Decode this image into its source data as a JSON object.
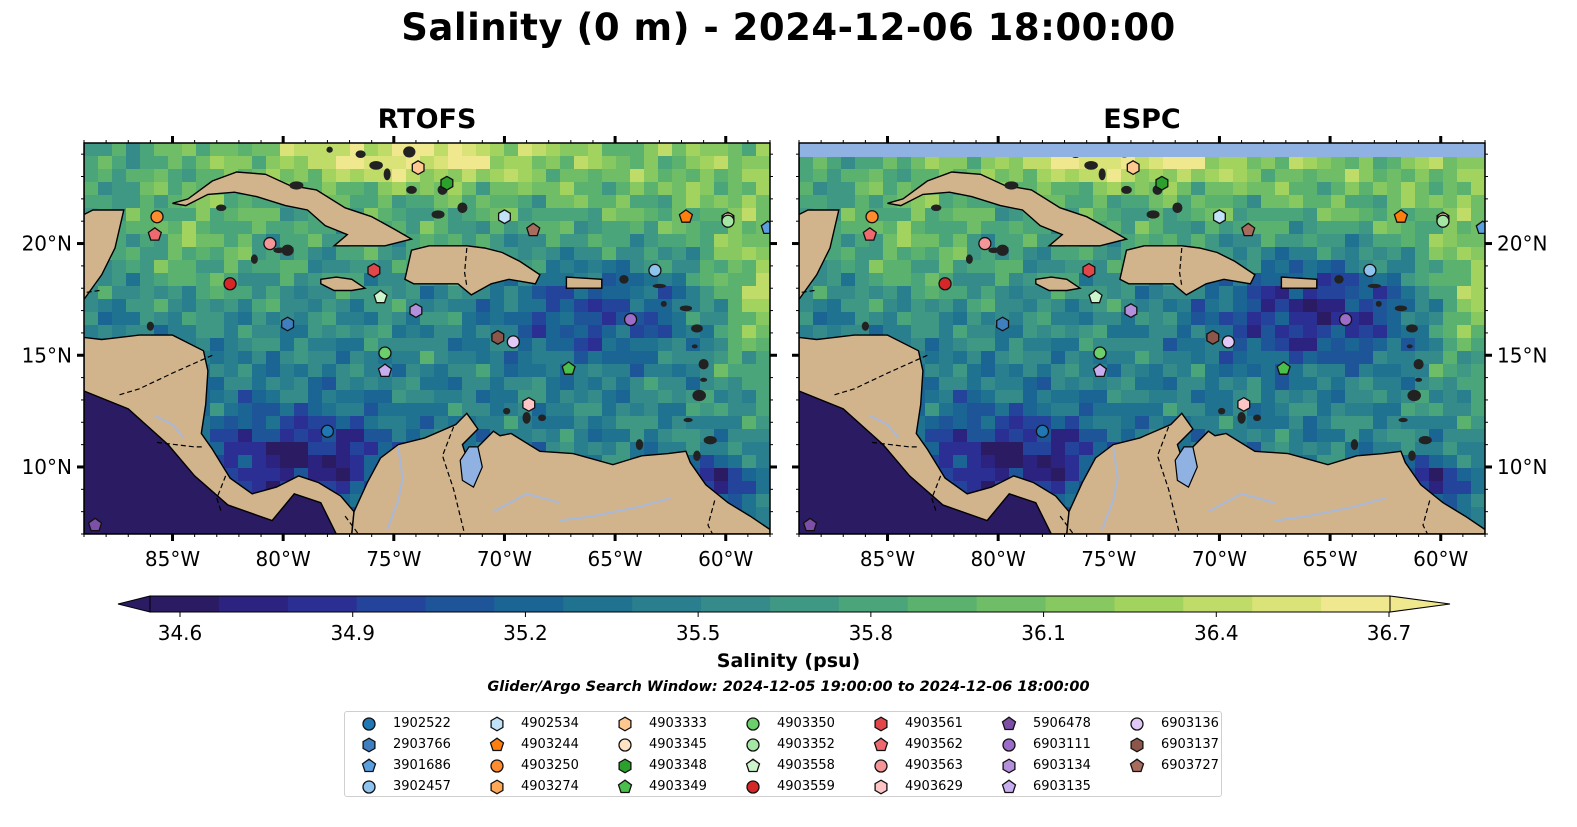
{
  "title": "Salinity (0 m) - 2024-12-06 18:00:00",
  "panels": [
    {
      "title": "RTOFS",
      "variant": "rtofs"
    },
    {
      "title": "ESPC",
      "variant": "espc"
    }
  ],
  "map_extent": {
    "lon": [
      -89,
      -58
    ],
    "lat": [
      7,
      24.5
    ]
  },
  "axes": {
    "lon_ticks": [
      -85,
      -80,
      -75,
      -70,
      -65,
      -60
    ],
    "lon_labels": [
      "85°W",
      "80°W",
      "75°W",
      "70°W",
      "65°W",
      "60°W"
    ],
    "lat_ticks": [
      10,
      15,
      20
    ],
    "lat_labels": [
      "10°N",
      "15°N",
      "20°N"
    ]
  },
  "colorbar": {
    "label": "Salinity (psu)",
    "ticks": [
      "34.6",
      "34.9",
      "35.2",
      "35.5",
      "35.8",
      "36.1",
      "36.4",
      "36.7"
    ],
    "range": [
      34.6,
      36.7
    ],
    "extend": "both",
    "colors": [
      "#2b1b63",
      "#2c2280",
      "#2b2f94",
      "#23449a",
      "#1e5599",
      "#1b6595",
      "#1f7290",
      "#2a7f8e",
      "#358b8a",
      "#3f9884",
      "#4aa57a",
      "#5bb26f",
      "#6fbd66",
      "#87c860",
      "#a2d35e",
      "#bfdc68",
      "#d9e378",
      "#efe88e"
    ]
  },
  "colorbar_label": "Salinity (psu)",
  "search_window": "Glider/Argo Search Window: 2024-12-05 19:00:00 to 2024-12-06 18:00:00",
  "colors": {
    "land": "#d2b48c",
    "nodata": "#8fb2e3",
    "rivers": "#a8b8d8",
    "legend_border": "#cccccc"
  },
  "floats": [
    {
      "id": "1902522",
      "marker": "circle",
      "color": "#1f77b4",
      "lon": -78.0,
      "lat": 11.6
    },
    {
      "id": "2903766",
      "marker": "hexagon",
      "color": "#3f7fc0",
      "lon": -79.8,
      "lat": 16.4
    },
    {
      "id": "3901686",
      "marker": "pentagon",
      "color": "#5aa0e0",
      "lon": -58.1,
      "lat": 20.7
    },
    {
      "id": "3902457",
      "marker": "circle",
      "color": "#8ec3ee",
      "lon": -63.2,
      "lat": 18.8
    },
    {
      "id": "4902534",
      "marker": "hexagon",
      "color": "#c2e3f7",
      "lon": -70.0,
      "lat": 21.2
    },
    {
      "id": "4903244",
      "marker": "pentagon",
      "color": "#ff7f0e",
      "lon": -61.8,
      "lat": 21.2
    },
    {
      "id": "4903250",
      "marker": "circle",
      "color": "#ff8c2e",
      "lon": -85.7,
      "lat": 21.2
    },
    {
      "id": "4903274",
      "marker": "hexagon",
      "color": "#ffa857",
      "lon": -59.9,
      "lat": 21.1
    },
    {
      "id": "4903333",
      "marker": "hexagon",
      "color": "#ffc891",
      "lon": -73.9,
      "lat": 23.4
    },
    {
      "id": "4903345",
      "marker": "circle",
      "color": "#ffe3c4",
      "lon": -59.9,
      "lat": 21.1
    },
    {
      "id": "4903348",
      "marker": "hexagon",
      "color": "#2ca02c",
      "lon": -72.6,
      "lat": 22.7
    },
    {
      "id": "4903349",
      "marker": "pentagon",
      "color": "#4bbf4b",
      "lon": -67.1,
      "lat": 14.4
    },
    {
      "id": "4903350",
      "marker": "circle",
      "color": "#6ccf6c",
      "lon": -75.4,
      "lat": 15.1
    },
    {
      "id": "4903352",
      "marker": "circle",
      "color": "#a5e6a5",
      "lon": -59.9,
      "lat": 21.0
    },
    {
      "id": "4903558",
      "marker": "pentagon",
      "color": "#ccf5cc",
      "lon": -75.6,
      "lat": 17.6
    },
    {
      "id": "4903559",
      "marker": "circle",
      "color": "#d62728",
      "lon": -82.4,
      "lat": 18.2
    },
    {
      "id": "4903561",
      "marker": "hexagon",
      "color": "#e0464a",
      "lon": -75.9,
      "lat": 18.8
    },
    {
      "id": "4903562",
      "marker": "pentagon",
      "color": "#ee6a6e",
      "lon": -85.8,
      "lat": 20.4
    },
    {
      "id": "4903563",
      "marker": "circle",
      "color": "#f59597",
      "lon": -80.6,
      "lat": 20.0
    },
    {
      "id": "4903629",
      "marker": "hexagon",
      "color": "#fdc5c6",
      "lon": -68.9,
      "lat": 12.8
    },
    {
      "id": "5906478",
      "marker": "pentagon",
      "color": "#7e4fa6",
      "lon": -88.5,
      "lat": 7.4
    },
    {
      "id": "6903111",
      "marker": "circle",
      "color": "#9c6cc9",
      "lon": -64.3,
      "lat": 16.6
    },
    {
      "id": "6903134",
      "marker": "hexagon",
      "color": "#b48fdb",
      "lon": -74.0,
      "lat": 17.0
    },
    {
      "id": "6903135",
      "marker": "pentagon",
      "color": "#c8aef0",
      "lon": -75.4,
      "lat": 14.3
    },
    {
      "id": "6903136",
      "marker": "circle",
      "color": "#e0c8f7",
      "lon": -69.6,
      "lat": 15.6
    },
    {
      "id": "6903137",
      "marker": "hexagon",
      "color": "#8c564b",
      "lon": -70.3,
      "lat": 15.8
    },
    {
      "id": "6903727",
      "marker": "pentagon",
      "color": "#a86c5e",
      "lon": -68.7,
      "lat": 20.6
    }
  ]
}
